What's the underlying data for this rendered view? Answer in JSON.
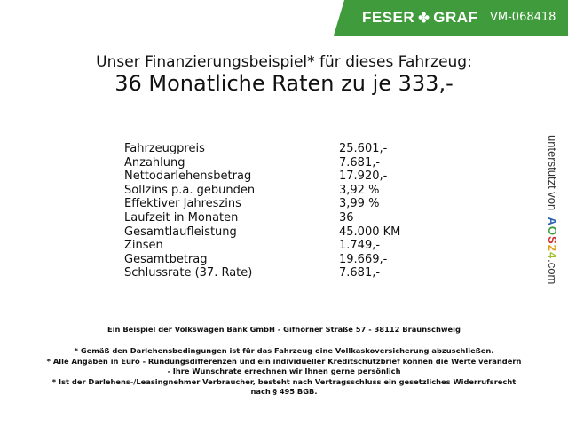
{
  "banner": {
    "brand_left": "FESER",
    "brand_right": "GRAF",
    "brand_icon": "clover-icon",
    "id": "VM-068418",
    "color": "#3f9b3b"
  },
  "title": {
    "line1": "Unser Finanzierungsbeispiel* für dieses Fahrzeug:",
    "line2": "36 Monatliche Raten zu je 333,-"
  },
  "rows": [
    {
      "label": "Fahrzeugpreis",
      "value": "25.601,-"
    },
    {
      "label": "Anzahlung",
      "value": "7.681,-"
    },
    {
      "label": "Nettodarlehensbetrag",
      "value": "17.920,-"
    },
    {
      "label": "Sollzins p.a. gebunden",
      "value": "3,92 %"
    },
    {
      "label": "Effektiver Jahreszins",
      "value": "3,99 %"
    },
    {
      "label": "Laufzeit in Monaten",
      "value": "36"
    },
    {
      "label": "Gesamtlaufleistung",
      "value": "45.000 KM"
    },
    {
      "label": "Zinsen",
      "value": "1.749,-"
    },
    {
      "label": "Gesamtbetrag",
      "value": "19.669,-"
    },
    {
      "label": "Schlussrate (37. Rate)",
      "value": "7.681,-"
    }
  ],
  "side": {
    "prefix": "unterstützt von",
    "logo": [
      "A",
      "O",
      "S",
      "2",
      "4"
    ],
    "suffix": ".com"
  },
  "footer": {
    "bank": "Ein Beispiel der Volkswagen Bank GmbH - Gifhorner Straße 57 - 38112 Braunschweig",
    "note1": "* Gemäß den Darlehensbedingungen ist für das Fahrzeug eine Vollkaskoversicherung abzuschließen.",
    "note2a": "* Alle Angaben in Euro - Rundungsdifferenzen und ein individueller Kreditschutzbrief können die Werte verändern",
    "note2b": "- Ihre Wunschrate errechnen wir Ihnen gerne persönlich",
    "note3a": "* Ist der Darlehens-/Leasingnehmer Verbraucher, besteht nach Vertragsschluss ein gesetzliches Widerrufsrecht",
    "note3b": "nach § 495 BGB."
  }
}
